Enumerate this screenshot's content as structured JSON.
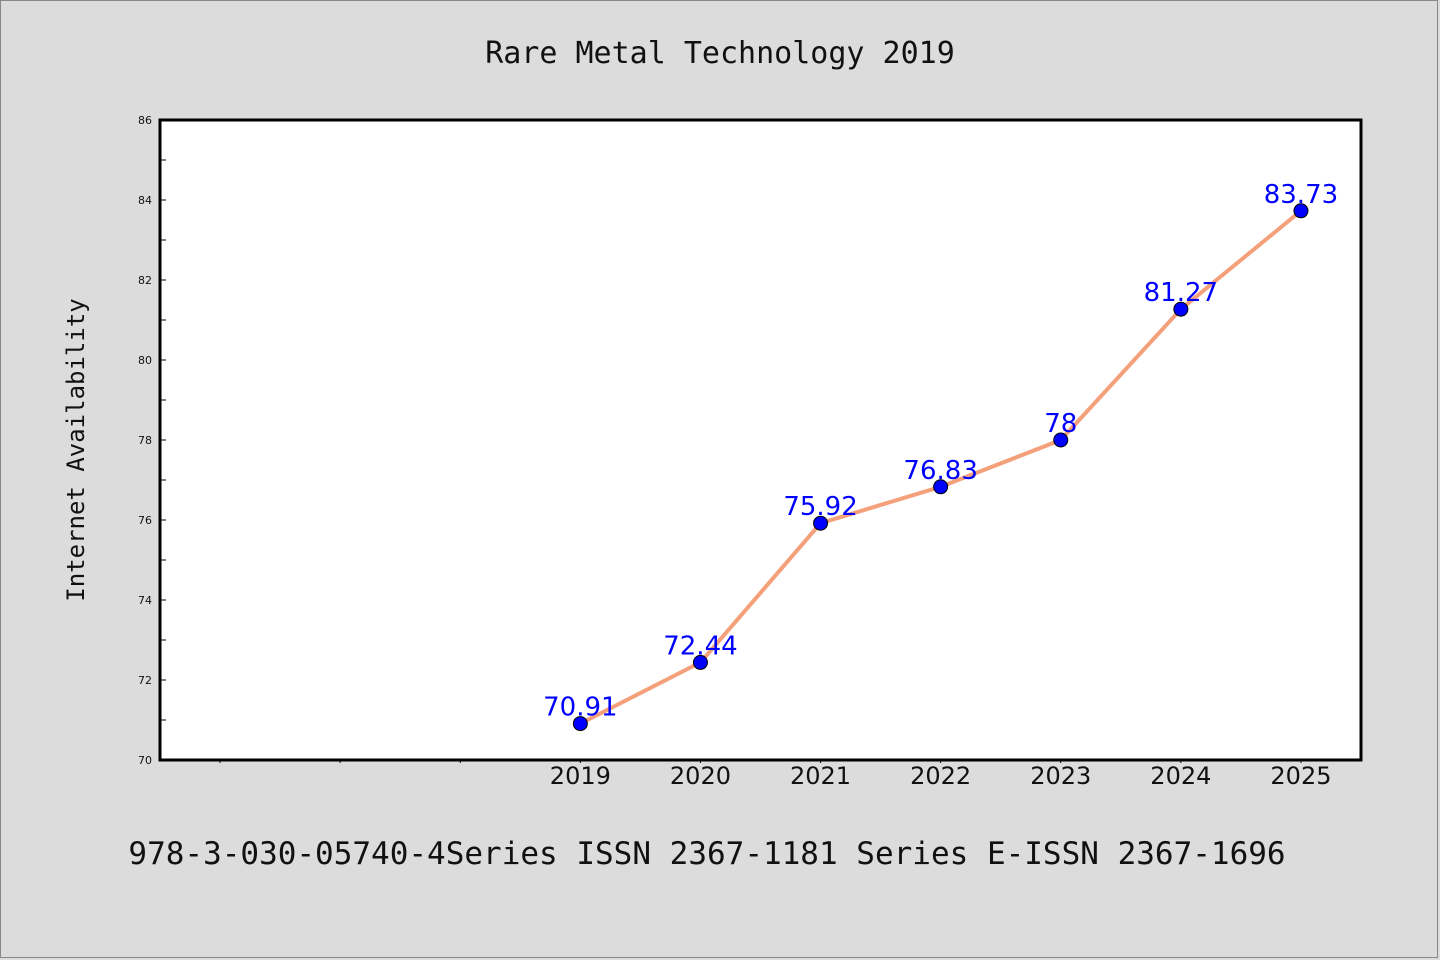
{
  "chart_data": {
    "type": "line",
    "title": "Rare Metal Technology 2019",
    "xlabel": "",
    "ylabel": "Internet Availability",
    "x": [
      "2019",
      "2020",
      "2021",
      "2022",
      "2023",
      "2024",
      "2025"
    ],
    "x_range": [
      2015.5,
      2025.5
    ],
    "series": [
      {
        "values": [
          70.91,
          72.44,
          75.92,
          76.83,
          78,
          81.27,
          83.73
        ],
        "labels": [
          "70.91",
          "72.44",
          "75.92",
          "76.83",
          "78",
          "81.27",
          "83.73"
        ],
        "line_color": "#f4a07a",
        "marker_color": "#0000ff",
        "label_color": "#0000ff"
      }
    ],
    "ylim": [
      70,
      86
    ],
    "yticks": [
      "70",
      "72",
      "74",
      "76",
      "78",
      "80",
      "82",
      "84",
      "86"
    ],
    "grid": false,
    "legend": "none"
  },
  "footer": "978-3-030-05740-4Series ISSN 2367-1181 Series E-ISSN 2367-1696"
}
